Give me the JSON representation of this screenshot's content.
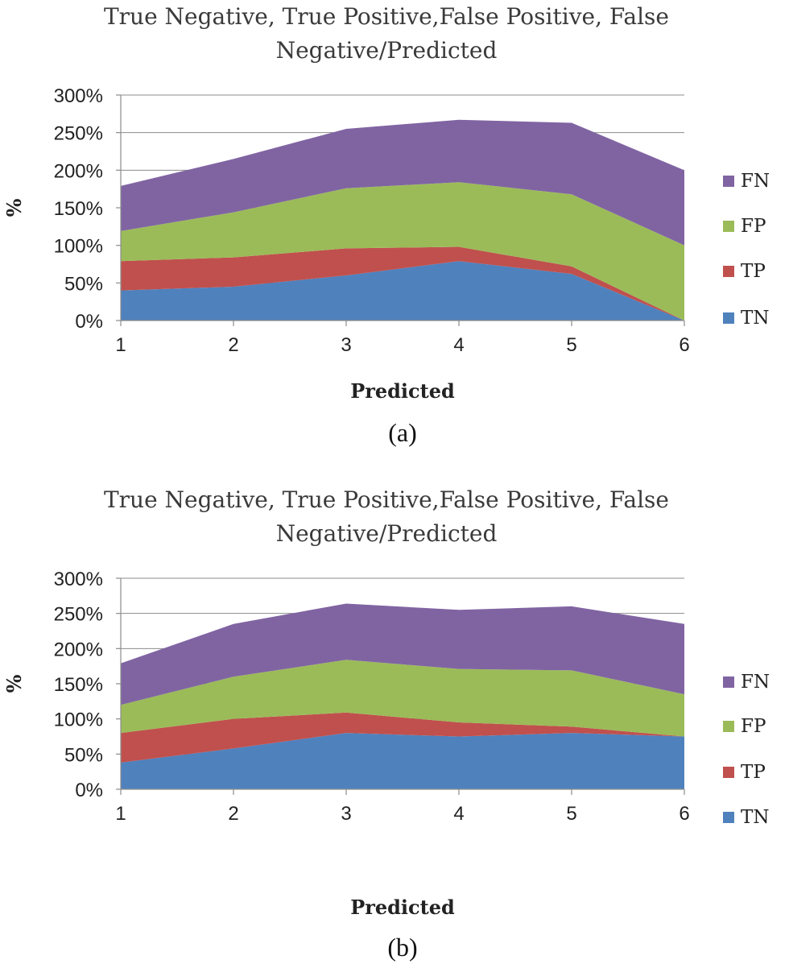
{
  "colors": {
    "TN": "#4f81bd",
    "TP": "#c0504d",
    "FP": "#9bbb59",
    "FN": "#8064a2"
  },
  "chart_data": [
    {
      "type": "area",
      "stacked": true,
      "title": "True Negative, True Positive,False Positive, False Negative/Predicted",
      "title_lines": [
        "True Negative, True Positive,False Positive, False",
        "Negative/Predicted"
      ],
      "xlabel": "Predicted",
      "ylabel": "%",
      "x": [
        "1",
        "2",
        "3",
        "4",
        "5",
        "6"
      ],
      "ylim": [
        0,
        300
      ],
      "yticks": [
        "0%",
        "50%",
        "100%",
        "150%",
        "200%",
        "250%",
        "300%"
      ],
      "grid": true,
      "legend_position": "right",
      "legend": [
        "FN",
        "FP",
        "TP",
        "TN"
      ],
      "caption": "(a)",
      "series": [
        {
          "name": "TN",
          "values": [
            40,
            45,
            60,
            79,
            62,
            0
          ]
        },
        {
          "name": "TP",
          "values": [
            39,
            39,
            36,
            19,
            10,
            0
          ]
        },
        {
          "name": "FP",
          "values": [
            40,
            60,
            80,
            86,
            96,
            100
          ]
        },
        {
          "name": "FN",
          "values": [
            60,
            71,
            79,
            83,
            95,
            100
          ]
        }
      ]
    },
    {
      "type": "area",
      "stacked": true,
      "title": "True Negative, True Positive,False Positive, False Negative/Predicted",
      "title_lines": [
        "True Negative, True Positive,False Positive, False",
        "Negative/Predicted"
      ],
      "xlabel": "Predicted",
      "ylabel": "%",
      "x": [
        "1",
        "2",
        "3",
        "4",
        "5",
        "6"
      ],
      "ylim": [
        0,
        300
      ],
      "yticks": [
        "0%",
        "50%",
        "100%",
        "150%",
        "200%",
        "250%",
        "300%"
      ],
      "grid": true,
      "legend_position": "right",
      "legend": [
        "FN",
        "FP",
        "TP",
        "TN"
      ],
      "caption": "(b)",
      "series": [
        {
          "name": "TN",
          "values": [
            38,
            58,
            80,
            75,
            80,
            75
          ]
        },
        {
          "name": "TP",
          "values": [
            42,
            42,
            29,
            20,
            9,
            0
          ]
        },
        {
          "name": "FP",
          "values": [
            40,
            60,
            75,
            76,
            80,
            60
          ]
        },
        {
          "name": "FN",
          "values": [
            59,
            75,
            80,
            84,
            91,
            100
          ]
        }
      ]
    }
  ]
}
